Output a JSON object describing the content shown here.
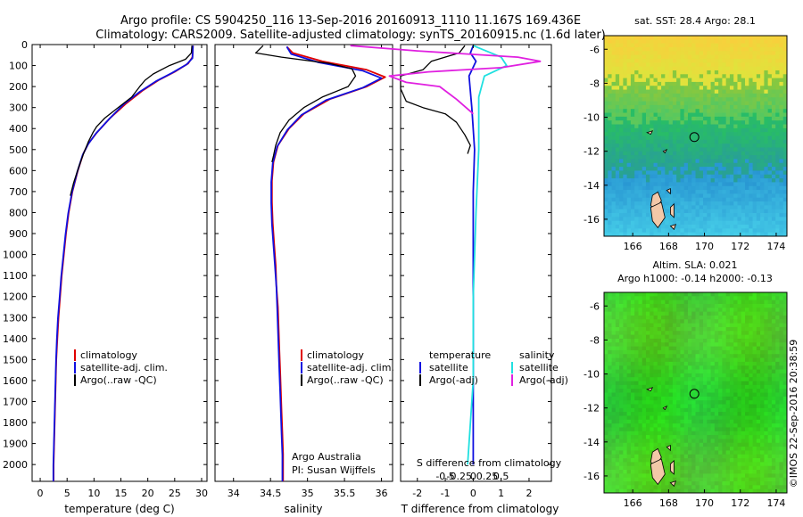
{
  "header": {
    "line1": "Argo profile: CS 5904250_116 13-Sep-2016 20160913_1110 11.167S 169.436E",
    "line2": "Climatology: CARS2009. Satellite-adjusted climatology: synTS_20160915.nc (1.6d later)"
  },
  "credit": "©IMOS 22-Sep-2016 20:38:59",
  "colors": {
    "climatology": "#e00000",
    "satellite": "#1010e0",
    "argo": "#000000",
    "sal_satellite": "#20e0e0",
    "sal_argo": "#e020e0"
  },
  "chart_data": [
    {
      "type": "line",
      "name": "temperature-profile",
      "xlabel": "temperature (deg C)",
      "xlim": [
        -1.5,
        31
      ],
      "xticks": [
        0,
        5,
        10,
        15,
        20,
        25,
        30
      ],
      "ylim": [
        0,
        2080
      ],
      "yticks": [
        0,
        100,
        200,
        300,
        400,
        500,
        600,
        700,
        800,
        900,
        1000,
        1100,
        1200,
        1300,
        1400,
        1500,
        1600,
        1700,
        1800,
        1900,
        2000
      ],
      "legend": [
        "climatology",
        "satellite-adj. clim.",
        "Argo(..raw -QC)"
      ],
      "series": [
        {
          "name": "climatology",
          "color_key": "climatology",
          "points": [
            [
              28.4,
              5
            ],
            [
              28.3,
              60
            ],
            [
              27.5,
              90
            ],
            [
              25,
              130
            ],
            [
              22,
              170
            ],
            [
              19,
              220
            ],
            [
              16,
              280
            ],
            [
              13,
              350
            ],
            [
              10.5,
              420
            ],
            [
              9,
              470
            ],
            [
              8,
              520
            ],
            [
              7,
              600
            ],
            [
              6,
              700
            ],
            [
              5.3,
              800
            ],
            [
              4.8,
              900
            ],
            [
              4.4,
              1000
            ],
            [
              4,
              1100
            ],
            [
              3.7,
              1200
            ],
            [
              3.4,
              1300
            ],
            [
              3.2,
              1400
            ],
            [
              3,
              1500
            ],
            [
              2.9,
              1600
            ],
            [
              2.8,
              1700
            ],
            [
              2.7,
              1800
            ],
            [
              2.6,
              1900
            ],
            [
              2.5,
              2000
            ],
            [
              2.5,
              2080
            ]
          ]
        },
        {
          "name": "satellite-adj. clim.",
          "color_key": "satellite",
          "points": [
            [
              28.4,
              5
            ],
            [
              28.3,
              65
            ],
            [
              27.2,
              95
            ],
            [
              24.5,
              135
            ],
            [
              21.5,
              175
            ],
            [
              18.5,
              225
            ],
            [
              15.5,
              285
            ],
            [
              12.8,
              355
            ],
            [
              10.3,
              425
            ],
            [
              8.9,
              475
            ],
            [
              7.9,
              525
            ],
            [
              6.9,
              605
            ],
            [
              5.9,
              705
            ],
            [
              5.2,
              805
            ],
            [
              4.7,
              905
            ],
            [
              4.3,
              1005
            ],
            [
              3.9,
              1105
            ],
            [
              3.6,
              1205
            ],
            [
              3.3,
              1305
            ],
            [
              3.1,
              1405
            ],
            [
              2.95,
              1505
            ],
            [
              2.85,
              1605
            ],
            [
              2.75,
              1705
            ],
            [
              2.65,
              1805
            ],
            [
              2.55,
              1905
            ],
            [
              2.45,
              2005
            ],
            [
              2.45,
              2080
            ]
          ]
        },
        {
          "name": "Argo(..raw -QC)",
          "color_key": "argo",
          "points": [
            [
              28.2,
              5
            ],
            [
              28.1,
              40
            ],
            [
              27,
              70
            ],
            [
              24,
              100
            ],
            [
              21,
              140
            ],
            [
              19.5,
              170
            ],
            [
              18.5,
              200
            ],
            [
              17,
              250
            ],
            [
              14,
              310
            ],
            [
              12,
              350
            ],
            [
              10.5,
              390
            ],
            [
              9.8,
              420
            ],
            [
              9,
              460
            ],
            [
              8.2,
              510
            ],
            [
              7.2,
              580
            ],
            [
              6.2,
              660
            ],
            [
              5.6,
              720
            ]
          ]
        }
      ]
    },
    {
      "type": "line",
      "name": "salinity-profile",
      "xlabel": "salinity",
      "xlim": [
        33.75,
        36.15
      ],
      "xticks": [
        34,
        34.5,
        35,
        35.5,
        36
      ],
      "ylim": [
        0,
        2080
      ],
      "legend": [
        "climatology",
        "satellite-adj. clim.",
        "Argo(..raw -QC)"
      ],
      "annotation": [
        "Argo Australia",
        "PI: Susan Wijffels"
      ],
      "series": [
        {
          "name": "climatology",
          "color_key": "climatology",
          "points": [
            [
              34.72,
              10
            ],
            [
              34.8,
              40
            ],
            [
              35.2,
              80
            ],
            [
              35.8,
              120
            ],
            [
              36.05,
              155
            ],
            [
              35.8,
              200
            ],
            [
              35.3,
              260
            ],
            [
              34.95,
              330
            ],
            [
              34.75,
              400
            ],
            [
              34.6,
              480
            ],
            [
              34.54,
              560
            ],
            [
              34.52,
              650
            ],
            [
              34.52,
              750
            ],
            [
              34.53,
              850
            ],
            [
              34.55,
              950
            ],
            [
              34.57,
              1050
            ],
            [
              34.58,
              1150
            ],
            [
              34.6,
              1250
            ],
            [
              34.61,
              1350
            ],
            [
              34.62,
              1450
            ],
            [
              34.63,
              1550
            ],
            [
              34.64,
              1650
            ],
            [
              34.65,
              1750
            ],
            [
              34.66,
              1850
            ],
            [
              34.67,
              1950
            ],
            [
              34.67,
              2080
            ]
          ]
        },
        {
          "name": "satellite-adj. clim.",
          "color_key": "satellite",
          "points": [
            [
              34.72,
              10
            ],
            [
              34.78,
              45
            ],
            [
              35.15,
              85
            ],
            [
              35.75,
              125
            ],
            [
              36.0,
              160
            ],
            [
              35.75,
              205
            ],
            [
              35.25,
              265
            ],
            [
              34.92,
              335
            ],
            [
              34.73,
              405
            ],
            [
              34.59,
              485
            ],
            [
              34.53,
              565
            ],
            [
              34.51,
              655
            ],
            [
              34.51,
              755
            ],
            [
              34.52,
              855
            ],
            [
              34.54,
              955
            ],
            [
              34.56,
              1055
            ],
            [
              34.58,
              1155
            ],
            [
              34.59,
              1255
            ],
            [
              34.6,
              1355
            ],
            [
              34.61,
              1455
            ],
            [
              34.62,
              1555
            ],
            [
              34.63,
              1655
            ],
            [
              34.64,
              1755
            ],
            [
              34.65,
              1855
            ],
            [
              34.66,
              1955
            ],
            [
              34.66,
              2080
            ]
          ]
        },
        {
          "name": "Argo(..raw -QC)",
          "color_key": "argo",
          "points": [
            [
              34.4,
              5
            ],
            [
              34.3,
              40
            ],
            [
              34.65,
              60
            ],
            [
              35.3,
              90
            ],
            [
              35.6,
              115
            ],
            [
              35.65,
              150
            ],
            [
              35.55,
              200
            ],
            [
              35.2,
              250
            ],
            [
              34.95,
              300
            ],
            [
              34.75,
              360
            ],
            [
              34.63,
              420
            ],
            [
              34.57,
              480
            ],
            [
              34.54,
              530
            ],
            [
              34.52,
              560
            ]
          ]
        }
      ]
    },
    {
      "type": "line",
      "name": "difference-profile",
      "xlabel": "T difference from climatology",
      "xlabel_top": "S difference from climatology",
      "xlim": [
        -2.6,
        2.8
      ],
      "xticks": [
        -2,
        -1,
        0,
        1,
        2
      ],
      "s_xticks": [
        -0.5,
        -0.25,
        0,
        0.25,
        0.5
      ],
      "ylim": [
        0,
        2080
      ],
      "legend_temperature": [
        "temperature",
        "satellite",
        "Argo(-adj)"
      ],
      "legend_salinity": [
        "salinity",
        "satellite",
        "Argo(-adj)"
      ],
      "series": [
        {
          "name": "temperature satellite",
          "color_key": "satellite",
          "points": [
            [
              0,
              5
            ],
            [
              -0.1,
              40
            ],
            [
              0.1,
              80
            ],
            [
              -0.15,
              150
            ],
            [
              -0.05,
              300
            ],
            [
              0.05,
              500
            ],
            [
              0,
              700
            ],
            [
              0,
              1000
            ],
            [
              0,
              1400
            ],
            [
              0,
              2000
            ]
          ]
        },
        {
          "name": "temperature Argo(-adj)",
          "color_key": "argo",
          "points": [
            [
              -0.3,
              5
            ],
            [
              -0.5,
              40
            ],
            [
              -1.5,
              80
            ],
            [
              -1.8,
              120
            ],
            [
              -2.6,
              150
            ],
            [
              -2.6,
              210
            ],
            [
              -2.4,
              270
            ],
            [
              -1.8,
              300
            ],
            [
              -1,
              330
            ],
            [
              -0.6,
              370
            ],
            [
              -0.3,
              430
            ],
            [
              -0.1,
              480
            ],
            [
              -0.2,
              520
            ]
          ]
        },
        {
          "name": "salinity satellite",
          "color_key": "sal_satellite",
          "points": [
            [
              0,
              5
            ],
            [
              0.5,
              60
            ],
            [
              0.6,
              100
            ],
            [
              0.2,
              150
            ],
            [
              0.1,
              250
            ],
            [
              0.1,
              500
            ],
            [
              0.05,
              800
            ],
            [
              0,
              1200
            ],
            [
              0,
              1600
            ],
            [
              -0.1,
              2000
            ]
          ]
        },
        {
          "name": "salinity Argo(-adj)",
          "color_key": "sal_argo",
          "points": [
            [
              -2.2,
              5
            ],
            [
              -1,
              30
            ],
            [
              0.8,
              60
            ],
            [
              1.2,
              80
            ],
            [
              0.5,
              110
            ],
            [
              -0.8,
              130
            ],
            [
              -1.5,
              150
            ],
            [
              -1.2,
              180
            ],
            [
              -0.6,
              200
            ],
            [
              -0.3,
              260
            ],
            [
              0,
              330
            ]
          ]
        }
      ]
    },
    {
      "type": "heatmap",
      "name": "sst-map",
      "title": "sat. SST: 28.4  Argo: 28.1",
      "xticks": [
        166,
        168,
        170,
        172,
        174
      ],
      "yticks": [
        -6,
        -8,
        -10,
        -12,
        -14,
        -16
      ],
      "xlim": [
        164.4,
        174.6
      ],
      "ylim": [
        -17,
        -5.2
      ],
      "marker": [
        169.436,
        -11.167
      ]
    },
    {
      "type": "heatmap",
      "name": "sla-map",
      "title": "Altim. SLA: 0.021",
      "subtitle": "Argo h1000: -0.14 h2000: -0.13",
      "xticks": [
        166,
        168,
        170,
        172,
        174
      ],
      "yticks": [
        -6,
        -8,
        -10,
        -12,
        -14,
        -16
      ],
      "xlim": [
        164.4,
        174.6
      ],
      "ylim": [
        -17,
        -5.2
      ],
      "marker": [
        169.436,
        -11.167
      ]
    }
  ]
}
